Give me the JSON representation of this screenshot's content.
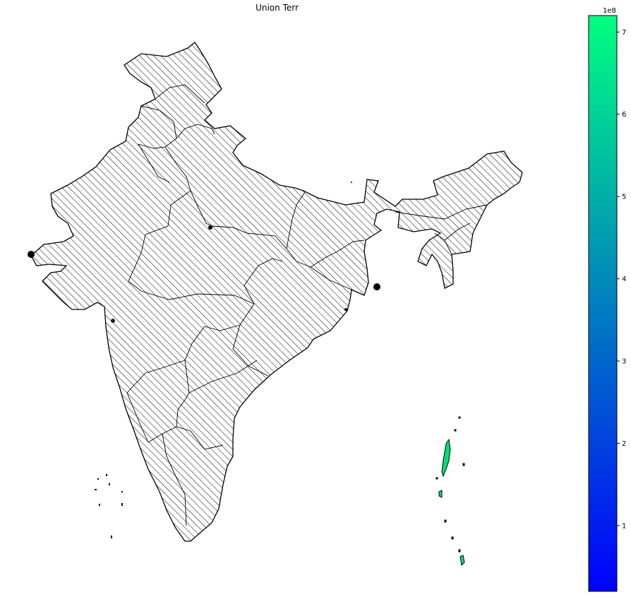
{
  "title": "Union Terr",
  "colorbar": {
    "exponent_label": "1e8",
    "ticks": [
      "1",
      "2",
      "3",
      "4",
      "5",
      "6",
      "7"
    ],
    "tick_values": [
      1,
      2,
      3,
      4,
      5,
      6,
      7
    ],
    "range": [
      0.2,
      7.2
    ],
    "colormap": [
      "#0000ff",
      "#00ff80"
    ]
  },
  "map": {
    "region": "India",
    "fill": "hatched",
    "hatch_color": "#000000",
    "highlight_color": "#00e070"
  }
}
